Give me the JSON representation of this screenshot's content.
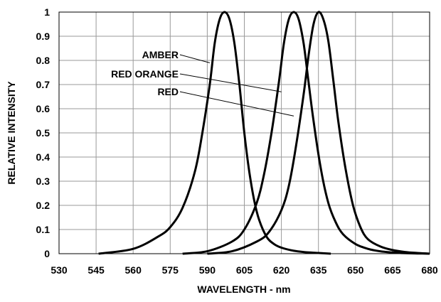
{
  "chart_data": {
    "type": "line",
    "title": "",
    "xlabel": "WAVELENGTH - nm",
    "ylabel": "RELATIVE INTENSITY",
    "xlim": [
      530,
      680
    ],
    "ylim": [
      0,
      1
    ],
    "grid": true,
    "x_ticks": [
      "530",
      "545",
      "560",
      "575",
      "590",
      "605",
      "620",
      "635",
      "650",
      "665",
      "680"
    ],
    "y_ticks": [
      "0",
      "0.1",
      "0.2",
      "0.3",
      "0.4",
      "0.5",
      "0.6",
      "0.7",
      "0.8",
      "0.9",
      "1"
    ],
    "series": [
      {
        "name": "AMBER",
        "x": [
          546,
          560,
          570,
          575,
          580,
          585,
          588,
          591,
          593,
          595,
          597,
          599,
          601,
          603,
          605,
          607,
          609,
          611,
          614,
          617,
          620,
          625,
          630,
          635,
          640
        ],
        "values": [
          0.0,
          0.02,
          0.07,
          0.11,
          0.19,
          0.34,
          0.5,
          0.7,
          0.87,
          0.97,
          1.0,
          0.97,
          0.87,
          0.7,
          0.5,
          0.34,
          0.22,
          0.14,
          0.07,
          0.04,
          0.025,
          0.012,
          0.006,
          0.003,
          0.0
        ]
      },
      {
        "name": "RED ORANGE",
        "x": [
          580,
          590,
          600,
          605,
          610,
          613,
          616,
          619,
          621,
          623,
          625,
          627,
          629,
          631,
          633,
          636,
          639,
          642,
          645,
          650,
          655,
          660,
          665,
          670,
          675,
          680
        ],
        "values": [
          0.0,
          0.01,
          0.05,
          0.1,
          0.21,
          0.33,
          0.5,
          0.71,
          0.87,
          0.97,
          1.0,
          0.97,
          0.87,
          0.71,
          0.55,
          0.35,
          0.21,
          0.13,
          0.08,
          0.04,
          0.02,
          0.01,
          0.005,
          0.002,
          0.001,
          0.0
        ]
      },
      {
        "name": "RED",
        "x": [
          590,
          600,
          610,
          615,
          620,
          623,
          626,
          629,
          631,
          633,
          635,
          637,
          639,
          641,
          643,
          646,
          649,
          652,
          655,
          660,
          665,
          670,
          675,
          680
        ],
        "values": [
          0.0,
          0.01,
          0.05,
          0.09,
          0.18,
          0.28,
          0.45,
          0.66,
          0.82,
          0.95,
          1.0,
          0.97,
          0.88,
          0.72,
          0.55,
          0.35,
          0.2,
          0.11,
          0.06,
          0.03,
          0.015,
          0.007,
          0.003,
          0.0
        ]
      }
    ],
    "annotations": [
      {
        "text": "AMBER",
        "target_series": "AMBER",
        "target_point": [
          591,
          0.79
        ]
      },
      {
        "text": "RED ORANGE",
        "target_series": "RED ORANGE",
        "target_point": [
          620,
          0.67
        ]
      },
      {
        "text": "RED",
        "target_series": "RED",
        "target_point": [
          625,
          0.57
        ]
      }
    ]
  }
}
